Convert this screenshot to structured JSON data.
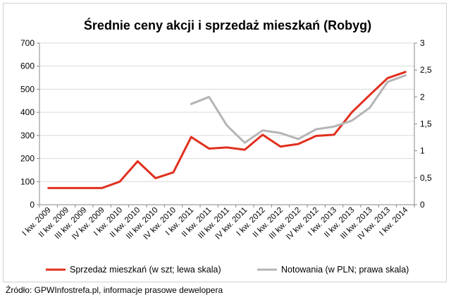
{
  "chart_data": {
    "type": "line",
    "title": "Średnie ceny akcji i sprzedaż mieszkań (Robyg)",
    "categories": [
      "I kw. 2009",
      "II kw. 2009",
      "III kw. 2009",
      "IV kw. 2009",
      "I kw. 2010",
      "II kw. 2010",
      "III kw. 2010",
      "IV kw. 2010",
      "I kw. 2011",
      "II kw. 2011",
      "III kw. 2011",
      "IV kw. 2011",
      "I kw. 2012",
      "II kw. 2012",
      "III kw. 2012",
      "IV kw. 2012",
      "I kw. 2013",
      "II kw. 2013",
      "III kw. 2013",
      "IV kw. 2013",
      "I kw. 2014"
    ],
    "y_left": {
      "min": 0,
      "max": 700,
      "ticks": [
        "0",
        "100",
        "200",
        "300",
        "400",
        "500",
        "600",
        "700"
      ]
    },
    "y_right": {
      "min": 0,
      "max": 3,
      "ticks": [
        "0",
        "0,5",
        "1",
        "1,5",
        "2",
        "2,5",
        "3"
      ]
    },
    "grid": "horizontal",
    "legend_position": "bottom",
    "series": [
      {
        "name": "Sprzedaż mieszkań (w szt; lewa skala)",
        "axis": "left",
        "color": "#e0301e",
        "values": [
          72,
          72,
          72,
          72,
          100,
          188,
          115,
          140,
          293,
          243,
          248,
          238,
          303,
          252,
          263,
          298,
          303,
          400,
          475,
          548,
          575
        ]
      },
      {
        "name": "Notowania (w PLN; prawa skala)",
        "axis": "right",
        "color": "#b5b5b5",
        "values": [
          null,
          null,
          null,
          null,
          null,
          null,
          null,
          null,
          1.87,
          2.0,
          1.47,
          1.15,
          1.38,
          1.33,
          1.22,
          1.4,
          1.45,
          1.56,
          1.8,
          2.28,
          2.4
        ]
      }
    ]
  },
  "footer": {
    "source": "Źródło: GPWInfostrefa.pl, informacje prasowe dewelopera"
  }
}
